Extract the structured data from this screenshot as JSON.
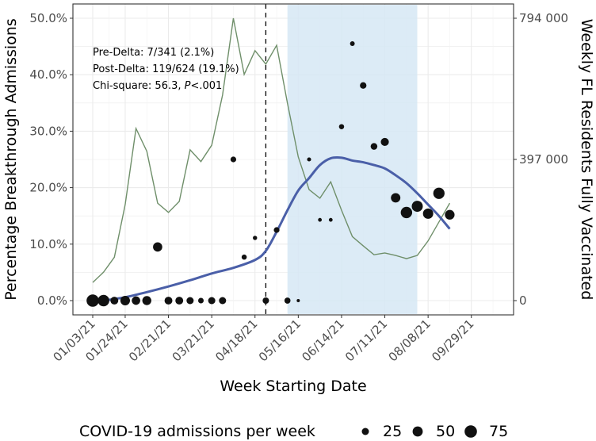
{
  "chart_data": {
    "type": "scatter",
    "title": "",
    "xlabel": "Week Starting Date",
    "ylabel": "Percentage Breakthrough Admissions",
    "y2label": "Weekly FL Residents Fully Vaccinated",
    "ylim": [
      0,
      50
    ],
    "y2lim": [
      0,
      794000
    ],
    "y_ticks": [
      "0.0%",
      "10.0%",
      "20.0%",
      "30.0%",
      "40.0%",
      "50.0%"
    ],
    "y2_ticks": [
      "0",
      "397 000",
      "794 000"
    ],
    "x_tick_labels": [
      {
        "week": 0,
        "label": "01/03/21"
      },
      {
        "week": 3,
        "label": "01/24/21"
      },
      {
        "week": 7,
        "label": "02/21/21"
      },
      {
        "week": 11,
        "label": "03/21/21"
      },
      {
        "week": 15,
        "label": "04/18/21"
      },
      {
        "week": 19,
        "label": "05/16/21"
      },
      {
        "week": 23,
        "label": "06/14/21"
      },
      {
        "week": 27,
        "label": "07/11/21"
      },
      {
        "week": 31,
        "label": "08/08/21"
      },
      {
        "week": 35,
        "label": "09/29/21"
      }
    ],
    "grid": true,
    "annotations": [
      "Pre-Delta: 7/341 (2.1%)",
      "Post-Delta: 119/624 (19.1%)",
      "Chi-square: 56.3, ",
      "P",
      "<.001"
    ],
    "delta_onset_week": 16,
    "shaded_weeks": [
      18,
      30
    ],
    "shaded_color": "#d6e8f5",
    "legend": {
      "title": "COVID-19 admissions per week",
      "entries": [
        25,
        50,
        75
      ],
      "position": "bottom"
    },
    "series": [
      {
        "name": "Breakthrough admissions (%)",
        "kind": "points",
        "color": "#111111",
        "week": [
          0,
          1,
          2,
          3,
          4,
          5,
          6,
          7,
          8,
          9,
          10,
          11,
          12,
          13,
          14,
          15,
          16,
          17,
          18,
          19,
          20,
          21,
          22,
          23,
          24,
          25,
          26,
          27,
          28,
          29,
          30,
          31,
          32,
          33
        ],
        "pct": [
          0,
          0,
          0,
          0,
          0,
          0,
          9.5,
          0,
          0,
          0,
          0,
          0,
          0,
          25,
          7.7,
          11.1,
          0,
          12.5,
          0,
          0,
          25,
          14.3,
          14.3,
          30.8,
          45.5,
          38.1,
          27.3,
          28.1,
          18.2,
          15.6,
          16.7,
          15.4,
          19.0,
          15.2
        ],
        "n": [
          75,
          65,
          30,
          45,
          35,
          40,
          42,
          30,
          30,
          25,
          15,
          25,
          25,
          16,
          13,
          9,
          20,
          16,
          18,
          5,
          8,
          7,
          7,
          13,
          11,
          21,
          22,
          32,
          44,
          64,
          60,
          52,
          63,
          46
        ]
      },
      {
        "name": "Smoothed trend",
        "kind": "line",
        "color": "#4a5fa8",
        "week": [
          1,
          3,
          5,
          7,
          9,
          11,
          13,
          15,
          16,
          17,
          18,
          19,
          20,
          21,
          22,
          23,
          24,
          25,
          26,
          27,
          28,
          29,
          30,
          31,
          32,
          33
        ],
        "pct": [
          0,
          0.6,
          1.5,
          2.5,
          3.6,
          4.8,
          5.8,
          7.2,
          8.8,
          12.2,
          16,
          19.5,
          21.7,
          24,
          25.2,
          25.3,
          24.8,
          24.5,
          24,
          23.4,
          22.2,
          20.8,
          19,
          17,
          15,
          12.7
        ]
      },
      {
        "name": "Weekly FL residents fully vaccinated",
        "kind": "line",
        "axis": "right",
        "color": "#6f8f6a",
        "week": [
          0,
          1,
          2,
          3,
          4,
          5,
          6,
          7,
          8,
          9,
          10,
          11,
          12,
          13,
          14,
          15,
          16,
          17,
          18,
          19,
          20,
          21,
          22,
          23,
          24,
          25,
          26,
          27,
          28,
          29,
          30,
          31,
          32,
          33
        ],
        "value": [
          51000,
          80000,
          122000,
          270000,
          484000,
          420000,
          274000,
          248000,
          279000,
          424000,
          391000,
          437000,
          578000,
          794000,
          636000,
          703000,
          665000,
          718000,
          555000,
          404000,
          312000,
          288000,
          334000,
          254000,
          180000,
          154000,
          129000,
          134000,
          127000,
          118000,
          127000,
          168000,
          221000,
          274000
        ]
      }
    ]
  }
}
